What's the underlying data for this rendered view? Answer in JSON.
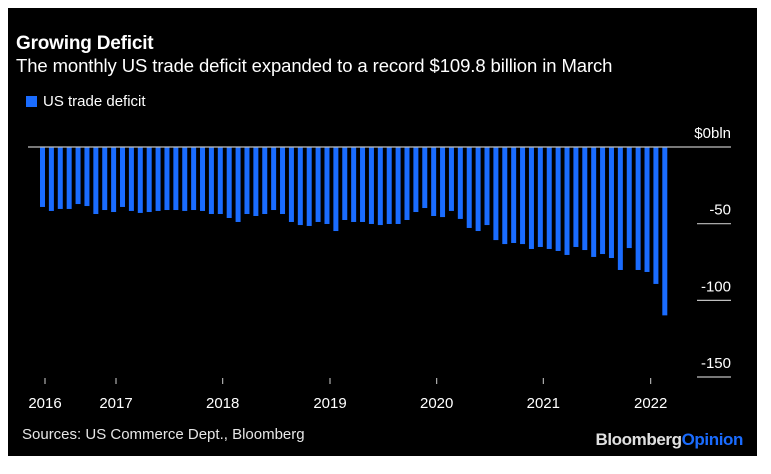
{
  "chart_data": {
    "type": "bar",
    "title": "Growing Deficit",
    "subtitle": "The monthly US trade deficit expanded to a record $109.8 billion in March",
    "xlabel": "",
    "ylabel": "",
    "ylim": [
      -150,
      0
    ],
    "y_unit_label": "$0bln",
    "yticks": [
      {
        "value": 0,
        "label": "$0bln"
      },
      {
        "value": -50,
        "label": "-50"
      },
      {
        "value": -100,
        "label": "-100"
      },
      {
        "value": -150,
        "label": "-150"
      }
    ],
    "xticks": [
      {
        "index": 0,
        "label": "2016"
      },
      {
        "index": 8,
        "label": "2017"
      },
      {
        "index": 20,
        "label": "2018"
      },
      {
        "index": 32,
        "label": "2019"
      },
      {
        "index": 44,
        "label": "2020"
      },
      {
        "index": 56,
        "label": "2021"
      },
      {
        "index": 68,
        "label": "2022"
      }
    ],
    "start_month": "2016-05",
    "end_month": "2022-03",
    "grid": false,
    "legend_position": "top-left",
    "series": [
      {
        "name": "US trade deficit",
        "color": "#1a6cff",
        "values": [
          -39.1,
          -41.7,
          -40.4,
          -40.4,
          -37.2,
          -38.5,
          -43.7,
          -41.1,
          -42.4,
          -39.1,
          -41.7,
          -43.0,
          -42.4,
          -41.7,
          -41.1,
          -41.1,
          -41.7,
          -41.1,
          -41.7,
          -43.7,
          -43.7,
          -46.3,
          -48.9,
          -43.7,
          -45.0,
          -43.7,
          -41.1,
          -43.7,
          -48.9,
          -50.9,
          -51.5,
          -48.9,
          -50.2,
          -54.8,
          -47.6,
          -48.9,
          -48.9,
          -50.2,
          -50.9,
          -50.2,
          -50.2,
          -47.6,
          -42.4,
          -39.8,
          -45.0,
          -45.7,
          -41.7,
          -46.9,
          -52.8,
          -54.8,
          -50.9,
          -60.7,
          -63.3,
          -62.6,
          -63.3,
          -66.5,
          -65.2,
          -66.5,
          -67.8,
          -70.4,
          -65.2,
          -67.2,
          -71.7,
          -69.8,
          -72.4,
          -80.2,
          -65.9,
          -80.2,
          -81.5,
          -89.3,
          -109.8
        ]
      }
    ],
    "legend": [
      "US trade deficit"
    ],
    "source": "Sources: US Commerce Dept., Bloomberg"
  },
  "brand": {
    "part1": "Bloomberg",
    "part2": "Opinion",
    "part1_color": "#e0e0e0",
    "part2_color": "#1a6cff"
  }
}
